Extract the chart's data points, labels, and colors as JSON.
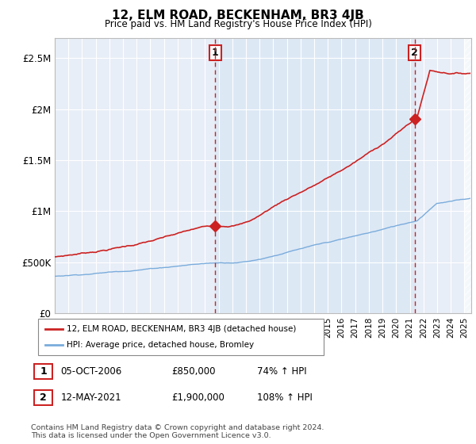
{
  "title": "12, ELM ROAD, BECKENHAM, BR3 4JB",
  "subtitle": "Price paid vs. HM Land Registry's House Price Index (HPI)",
  "ylabel_ticks": [
    "£0",
    "£500K",
    "£1M",
    "£1.5M",
    "£2M",
    "£2.5M"
  ],
  "ylabel_values": [
    0,
    500000,
    1000000,
    1500000,
    2000000,
    2500000
  ],
  "ylim": [
    0,
    2700000
  ],
  "sale1_price": 850000,
  "sale1_x": 2006.75,
  "sale2_price": 1900000,
  "sale2_x": 2021.36,
  "red_line_color": "#cc2222",
  "blue_line_color": "#7aacdc",
  "fill_color": "#dde8f5",
  "legend_label_red": "12, ELM ROAD, BECKENHAM, BR3 4JB (detached house)",
  "legend_label_blue": "HPI: Average price, detached house, Bromley",
  "footer": "Contains HM Land Registry data © Crown copyright and database right 2024.\nThis data is licensed under the Open Government Licence v3.0.",
  "table_row1": [
    "1",
    "05-OCT-2006",
    "£850,000",
    "74% ↑ HPI"
  ],
  "table_row2": [
    "2",
    "12-MAY-2021",
    "£1,900,000",
    "108% ↑ HPI"
  ],
  "xmin": 1995,
  "xmax": 2025.5,
  "bg_color": "#e8eef7"
}
